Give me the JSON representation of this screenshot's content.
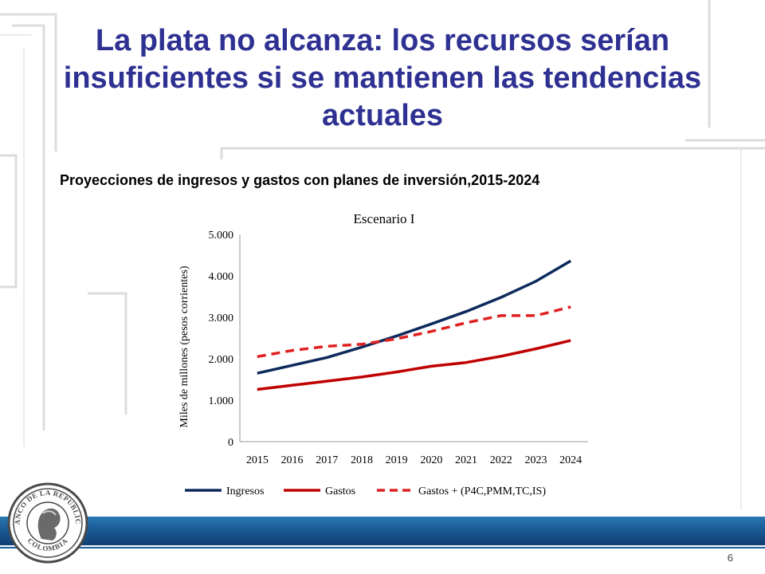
{
  "slide": {
    "title": "La plata no alcanza: los recursos serían insuficientes si se mantienen las tendencias actuales",
    "subtitle": "Proyecciones de ingresos y gastos con planes de inversión,2015-2024",
    "page_number": "6",
    "logo_text_top": "BANCO DE LA REPUBLICA",
    "logo_text_bottom": "COLOMBIA"
  },
  "colors": {
    "title": "#2e3192",
    "ingresos": "#0d2a5c",
    "gastos": "#c00000",
    "gastos_plus": "#e02020",
    "band": "#1a5a95"
  },
  "chart_data": {
    "type": "line",
    "title": "Escenario I",
    "ylabel": "Miles de millones (pesos corrientes)",
    "xlabel": "",
    "categories": [
      "2015",
      "2016",
      "2017",
      "2018",
      "2019",
      "2020",
      "2021",
      "2022",
      "2023",
      "2024"
    ],
    "ylim": [
      0,
      5000
    ],
    "yticks": [
      0,
      1000,
      2000,
      3000,
      4000,
      5000
    ],
    "ytick_labels": [
      "0",
      "1.000",
      "2.000",
      "3.000",
      "4.000",
      "5.000"
    ],
    "grid": false,
    "legend_position": "bottom",
    "series": [
      {
        "name": "Ingresos",
        "values": [
          1650,
          1840,
          2030,
          2280,
          2550,
          2840,
          3140,
          3480,
          3870,
          4360
        ],
        "style": "solid"
      },
      {
        "name": "Gastos",
        "values": [
          1260,
          1360,
          1460,
          1560,
          1680,
          1820,
          1910,
          2060,
          2240,
          2440
        ],
        "style": "solid"
      },
      {
        "name": "Gastos + (P4C,PMM,TC,IS)",
        "values": [
          2050,
          2200,
          2300,
          2350,
          2480,
          2660,
          2870,
          3040,
          3040,
          3250
        ],
        "style": "dashed"
      }
    ]
  }
}
